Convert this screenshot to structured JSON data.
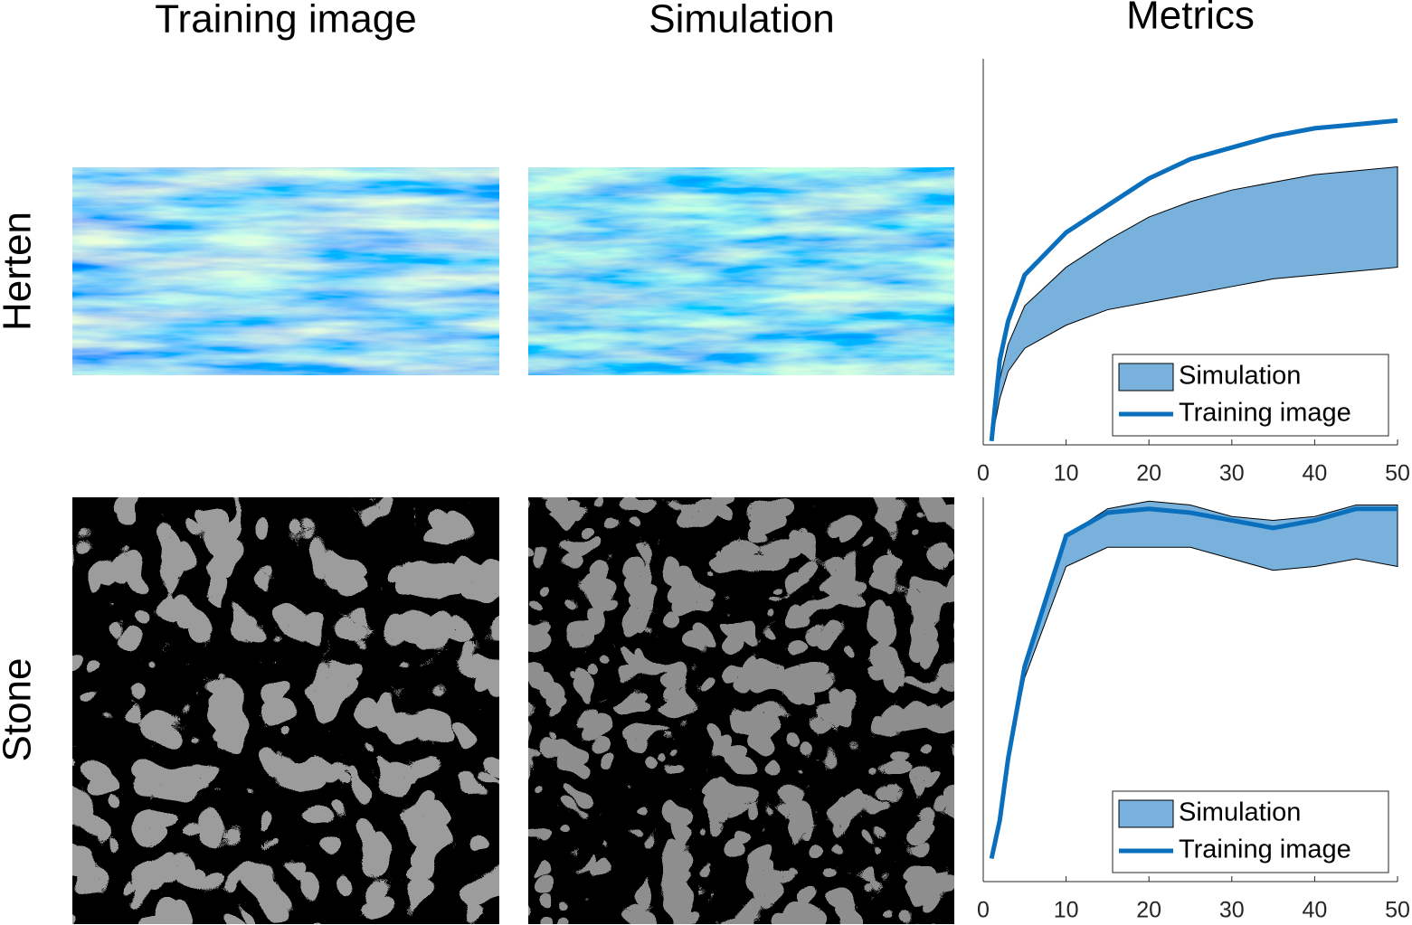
{
  "columns": [
    "Training image",
    "Simulation",
    "Metrics"
  ],
  "rows": [
    "Herten",
    "Stone"
  ],
  "chart_data": [
    {
      "type": "band-line",
      "x": [
        1,
        2,
        3,
        5,
        10,
        15,
        20,
        25,
        30,
        35,
        40,
        45,
        50
      ],
      "xlim": [
        0,
        50
      ],
      "xticks": [
        0,
        10,
        20,
        30,
        40,
        50
      ],
      "ylim": [
        0,
        1
      ],
      "legend": "lower-right",
      "series": [
        {
          "name": "Simulation",
          "color": "#77b1dc",
          "lower": [
            0.01,
            0.12,
            0.19,
            0.25,
            0.31,
            0.35,
            0.37,
            0.39,
            0.41,
            0.43,
            0.44,
            0.45,
            0.46
          ],
          "upper": [
            0.01,
            0.17,
            0.26,
            0.36,
            0.46,
            0.53,
            0.59,
            0.63,
            0.66,
            0.68,
            0.7,
            0.71,
            0.72
          ]
        },
        {
          "name": "Training image",
          "color": "#0a6fbd",
          "values": [
            0.01,
            0.22,
            0.32,
            0.44,
            0.55,
            0.62,
            0.69,
            0.74,
            0.77,
            0.8,
            0.82,
            0.83,
            0.84
          ]
        }
      ]
    },
    {
      "type": "band-line",
      "x": [
        1,
        2,
        3,
        5,
        10,
        15,
        20,
        25,
        30,
        35,
        40,
        45,
        50
      ],
      "xlim": [
        0,
        50
      ],
      "xticks": [
        0,
        10,
        20,
        30,
        40,
        50
      ],
      "ylim": [
        0,
        1
      ],
      "legend": "lower-right",
      "series": [
        {
          "name": "Simulation",
          "color": "#77b1dc",
          "lower": [
            0.06,
            0.16,
            0.31,
            0.53,
            0.82,
            0.87,
            0.87,
            0.87,
            0.84,
            0.81,
            0.82,
            0.84,
            0.82
          ],
          "upper": [
            0.06,
            0.16,
            0.32,
            0.56,
            0.9,
            0.97,
            0.99,
            0.98,
            0.95,
            0.94,
            0.95,
            0.98,
            0.98
          ]
        },
        {
          "name": "Training image",
          "color": "#0a6fbd",
          "values": [
            0.06,
            0.16,
            0.32,
            0.56,
            0.9,
            0.96,
            0.97,
            0.96,
            0.94,
            0.92,
            0.94,
            0.97,
            0.97
          ]
        }
      ]
    }
  ]
}
